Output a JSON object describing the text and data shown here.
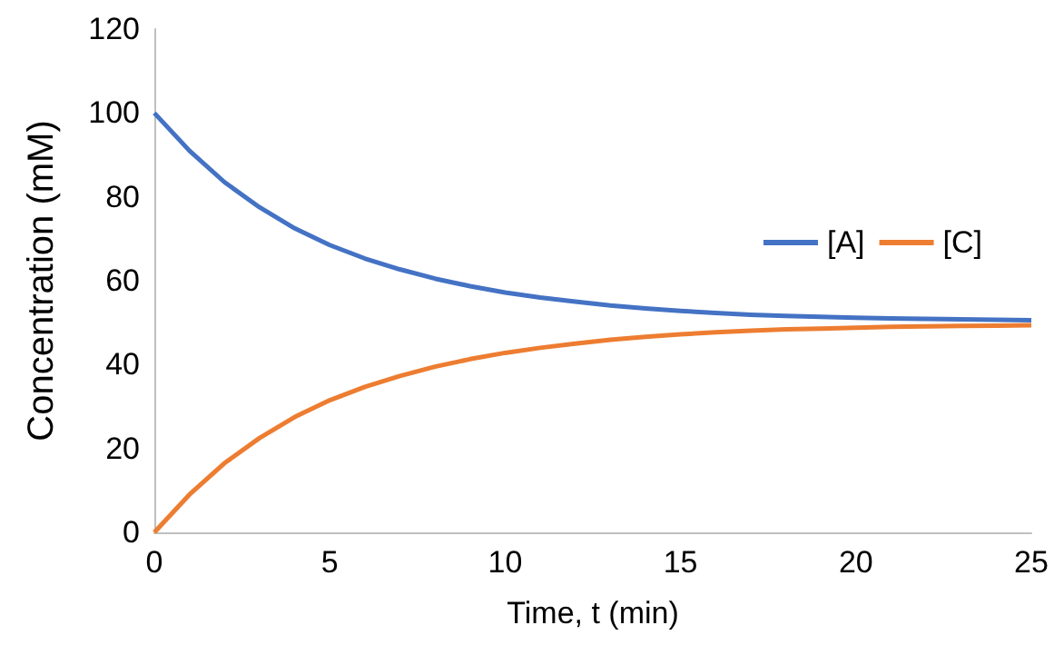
{
  "chart_data": {
    "type": "line",
    "xlabel": "Time, t (min)",
    "ylabel": "Concentration (mM)",
    "x": [
      0,
      1,
      2,
      3,
      4,
      5,
      6,
      7,
      8,
      9,
      10,
      11,
      12,
      13,
      14,
      15,
      16,
      17,
      18,
      19,
      20,
      21,
      22,
      23,
      24,
      25
    ],
    "series": [
      {
        "name": "[A]",
        "color": "#4472c4",
        "values": [
          100,
          91,
          83.5,
          77.5,
          72.5,
          68.5,
          65.3,
          62.7,
          60.5,
          58.7,
          57.2,
          56,
          55,
          54.1,
          53.4,
          52.8,
          52.3,
          51.9,
          51.6,
          51.4,
          51.2,
          51,
          50.9,
          50.8,
          50.7,
          50.6
        ]
      },
      {
        "name": "[C]",
        "color": "#ed7d31",
        "values": [
          0,
          9,
          16.5,
          22.5,
          27.5,
          31.5,
          34.7,
          37.3,
          39.5,
          41.3,
          42.8,
          44,
          45,
          45.9,
          46.6,
          47.2,
          47.7,
          48.1,
          48.4,
          48.6,
          48.8,
          49,
          49.1,
          49.2,
          49.3,
          49.4
        ]
      }
    ],
    "xlim": [
      0,
      25
    ],
    "xticks": [
      0,
      5,
      10,
      15,
      20,
      25
    ],
    "ylim": [
      0,
      120
    ],
    "yticks": [
      0,
      20,
      40,
      60,
      80,
      100,
      120
    ],
    "grid": false,
    "legend": "right",
    "marker": "none",
    "line_style": "solid"
  }
}
